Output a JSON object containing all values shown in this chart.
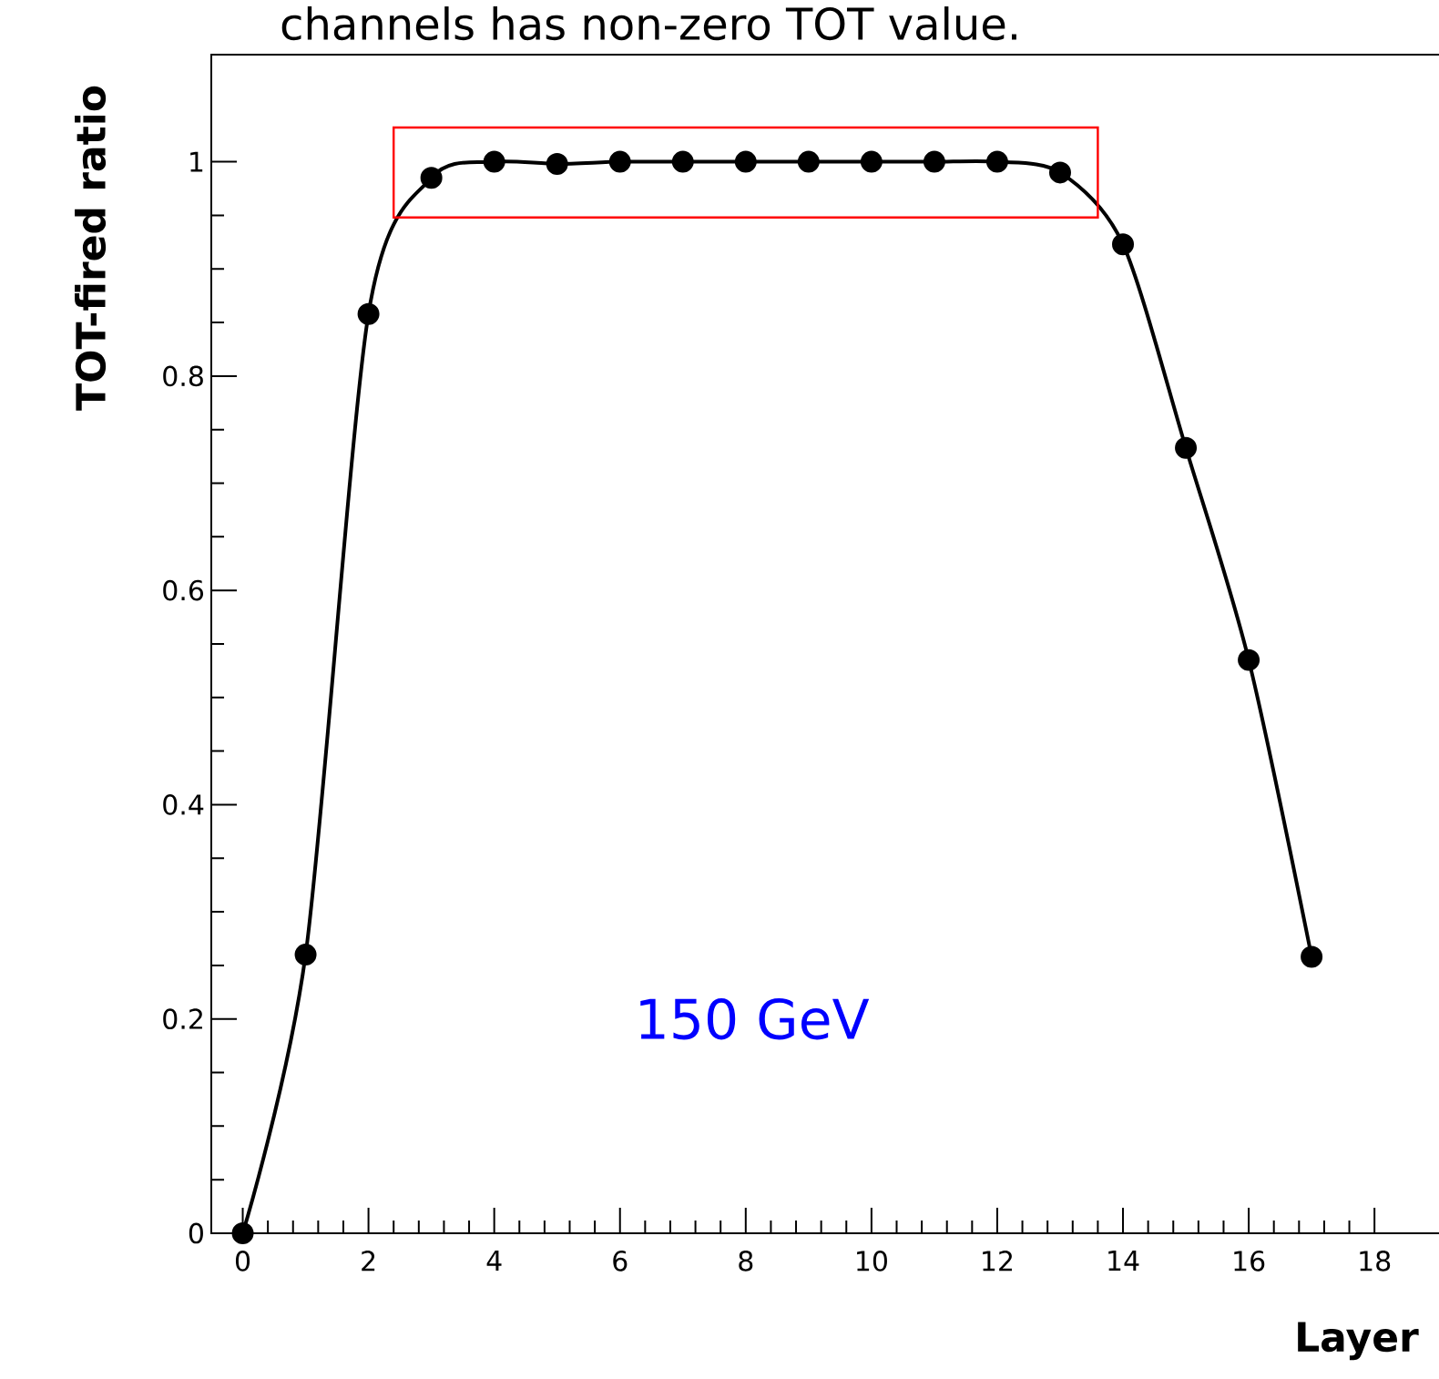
{
  "chart_data": {
    "type": "line",
    "xlabel": "Layer",
    "ylabel": "TOT-fired ratio",
    "x": [
      0,
      1,
      2,
      3,
      4,
      5,
      6,
      7,
      8,
      9,
      10,
      11,
      12,
      13,
      14,
      15,
      16,
      17
    ],
    "series": [
      {
        "color": "#000000",
        "values": [
          0,
          0.26,
          0.858,
          0.985,
          1.0,
          0.998,
          1.0,
          1.0,
          1.0,
          1.0,
          1.0,
          1.0,
          1.0,
          0.99,
          0.923,
          0.733,
          0.535,
          0.258
        ]
      }
    ],
    "xlim": [
      -0.5,
      19.2
    ],
    "ylim": [
      0,
      1.1
    ],
    "xticks": [
      0,
      2,
      4,
      6,
      8,
      10,
      12,
      14,
      16,
      18
    ],
    "yticks": [
      0,
      0.2,
      0.4,
      0.6,
      0.8,
      1
    ],
    "marker": "circle",
    "line_style": "solid",
    "grid": false,
    "annotations": [
      "150 GeV",
      "channels has non-zero TOT value."
    ]
  }
}
